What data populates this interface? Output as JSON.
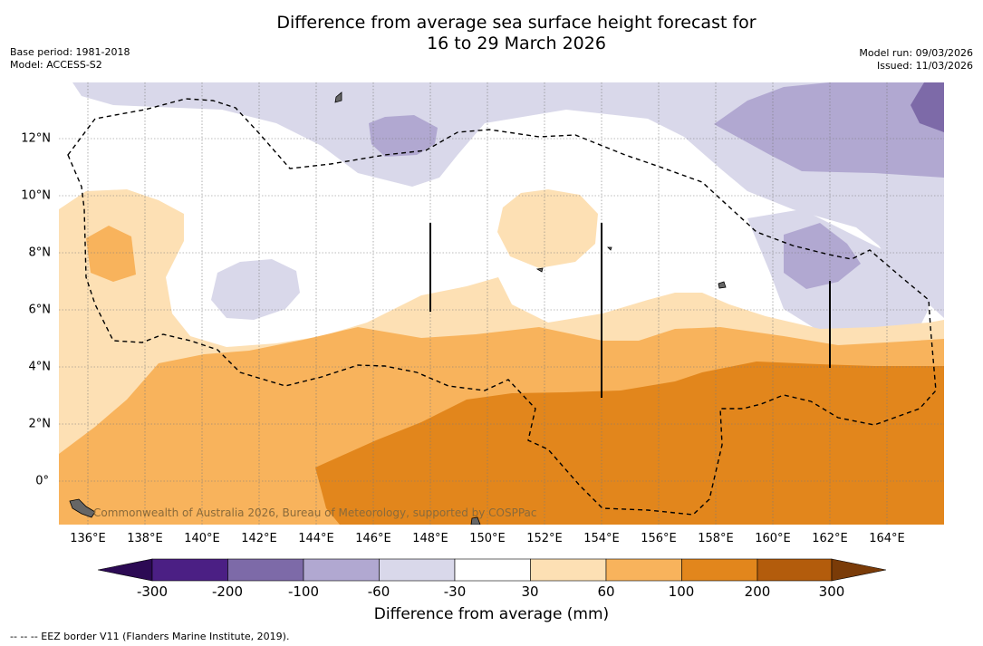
{
  "title": {
    "line1": "Difference from average sea surface height forecast for",
    "line2": "16 to 29 March 2026"
  },
  "meta": {
    "base_period": "Base period: 1981-2018",
    "model": "Model: ACCESS-S2",
    "model_run": "Model run: 09/03/2026",
    "issued": "Issued: 11/03/2026"
  },
  "axes": {
    "longitudes": [
      "136°E",
      "138°E",
      "140°E",
      "142°E",
      "144°E",
      "146°E",
      "148°E",
      "150°E",
      "152°E",
      "154°E",
      "156°E",
      "158°E",
      "160°E",
      "162°E",
      "164°E"
    ],
    "latitudes": [
      "12°N",
      "10°N",
      "8°N",
      "6°N",
      "4°N",
      "2°N",
      "0°"
    ]
  },
  "colorbar": {
    "title": "Difference from average (mm)",
    "ticks": [
      "-300",
      "-200",
      "-100",
      "-60",
      "-30",
      "30",
      "60",
      "100",
      "200",
      "300"
    ],
    "colors": [
      "#4b1f84",
      "#7d6aa8",
      "#b1a8d1",
      "#d9d8ea",
      "#ffffff",
      "#fde0b4",
      "#f8b35c",
      "#e2861c",
      "#b35c0c"
    ],
    "extend_low": "#2c0a54",
    "extend_high": "#7a3b08"
  },
  "credit": "Commonwealth of Australia 2026, Bureau of Meteorology, supported by COSPPac",
  "footnote": "--  --  -- EEZ border V11 (Flanders Marine Institute, 2019)."
}
